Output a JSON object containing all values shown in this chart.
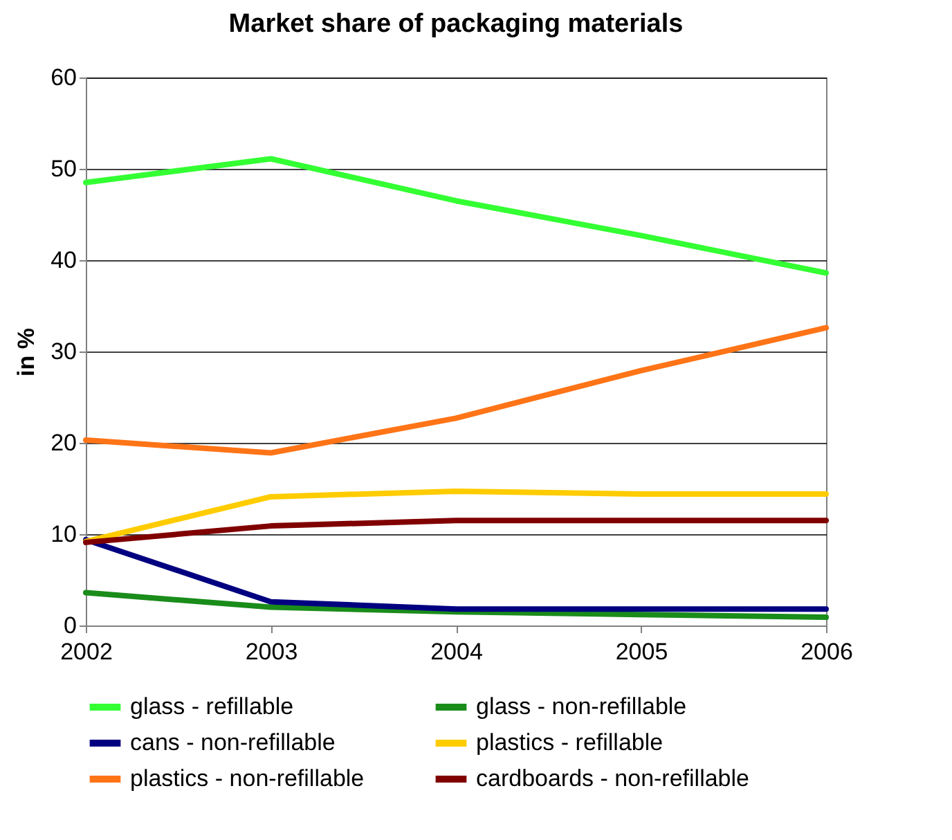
{
  "chart_data": {
    "type": "line",
    "title": "Market share of packaging materials",
    "ylabel": "in %",
    "categories": [
      "2002",
      "2003",
      "2004",
      "2005",
      "2006"
    ],
    "series": [
      {
        "name": "glass - refillable",
        "color": "#33ff33",
        "values": [
          48.5,
          51.1,
          46.5,
          42.7,
          38.6
        ]
      },
      {
        "name": "glass - non-refillable",
        "color": "#1a8c1a",
        "values": [
          3.6,
          2.0,
          1.5,
          1.2,
          0.9
        ]
      },
      {
        "name": "cans - non-refillable",
        "color": "#000080",
        "values": [
          9.4,
          2.6,
          1.8,
          1.8,
          1.8
        ]
      },
      {
        "name": "plastics - refillable",
        "color": "#ffcc00",
        "values": [
          9.2,
          14.1,
          14.7,
          14.4,
          14.4
        ]
      },
      {
        "name": "plastics - non-refillable",
        "color": "#ff7417",
        "values": [
          20.3,
          18.9,
          22.7,
          27.9,
          32.6
        ]
      },
      {
        "name": "cardboards - non-refillable",
        "color": "#800000",
        "values": [
          9.1,
          10.9,
          11.5,
          11.5,
          11.5
        ]
      }
    ],
    "ylim": [
      0,
      60
    ],
    "yticks": [
      0,
      10,
      20,
      30,
      40,
      50,
      60
    ],
    "grid": "y",
    "legend": "bottom",
    "marker": "none",
    "line_style": "solid"
  }
}
